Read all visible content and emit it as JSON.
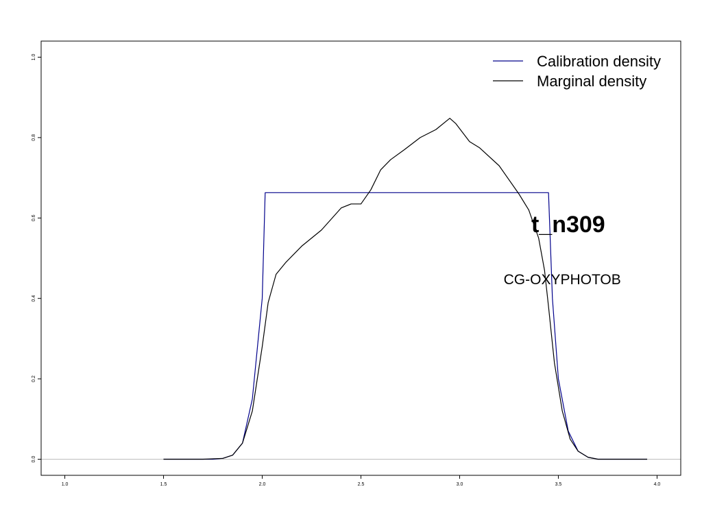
{
  "chart_data": {
    "type": "line",
    "title": "",
    "xlabel": "",
    "ylabel": "",
    "xlim": [
      0.88,
      4.12
    ],
    "ylim": [
      -0.04,
      1.04
    ],
    "grid": false,
    "legend_position": "top-right",
    "x_ticks": [
      "1.0",
      "1.5",
      "2.0",
      "2.5",
      "3.0",
      "3.5",
      "4.0"
    ],
    "y_ticks": [
      "0.0",
      "0.2",
      "0.4",
      "0.6",
      "0.8",
      "1.0"
    ],
    "x_tick_values": [
      1.0,
      1.5,
      2.0,
      2.5,
      3.0,
      3.5,
      4.0
    ],
    "y_tick_values": [
      0.0,
      0.2,
      0.4,
      0.6,
      0.8,
      1.0
    ],
    "baseline": 0.0,
    "annotations": [
      {
        "text": "t_n309",
        "x": 3.55,
        "y": 0.565
      },
      {
        "text": "CG-OXYPHOTOB",
        "x": 3.52,
        "y": 0.435
      }
    ],
    "series": [
      {
        "name": "Calibration density",
        "color": "#00008b",
        "x": [
          1.5,
          1.75,
          1.8,
          1.85,
          1.9,
          1.95,
          2.0,
          2.015,
          3.45,
          3.47,
          3.5,
          3.55,
          3.6,
          3.65,
          3.7,
          3.8,
          3.95
        ],
        "y": [
          0.0,
          0.0,
          0.002,
          0.01,
          0.04,
          0.15,
          0.4,
          0.663,
          0.663,
          0.4,
          0.2,
          0.07,
          0.02,
          0.005,
          0.0,
          0.0,
          0.0
        ]
      },
      {
        "name": "Marginal density",
        "color": "#000000",
        "x": [
          1.5,
          1.7,
          1.8,
          1.85,
          1.9,
          1.95,
          2.0,
          2.03,
          2.07,
          2.12,
          2.2,
          2.3,
          2.4,
          2.45,
          2.5,
          2.55,
          2.6,
          2.65,
          2.72,
          2.8,
          2.88,
          2.95,
          2.98,
          3.05,
          3.1,
          3.2,
          3.3,
          3.35,
          3.4,
          3.43,
          3.45,
          3.48,
          3.52,
          3.56,
          3.6,
          3.65,
          3.7,
          3.8,
          3.95
        ],
        "y": [
          0.0,
          0.0,
          0.002,
          0.01,
          0.04,
          0.12,
          0.28,
          0.39,
          0.46,
          0.49,
          0.53,
          0.57,
          0.625,
          0.635,
          0.635,
          0.67,
          0.72,
          0.745,
          0.77,
          0.8,
          0.82,
          0.848,
          0.835,
          0.79,
          0.775,
          0.73,
          0.66,
          0.62,
          0.55,
          0.47,
          0.38,
          0.24,
          0.12,
          0.05,
          0.02,
          0.005,
          0.0,
          0.0,
          0.0
        ]
      }
    ]
  }
}
